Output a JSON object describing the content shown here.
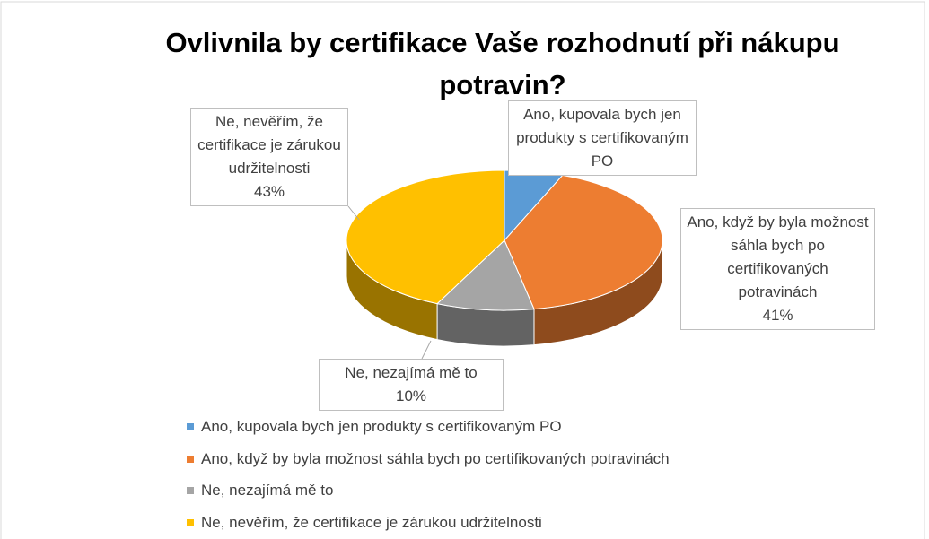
{
  "chart_data": {
    "type": "pie3d",
    "title": "Ovlivnila by certifikace Vaše rozhodnutí při nákupu potravin?",
    "categories": [
      "Ano, kupovala bych jen produkty s certifikovaným PO",
      "Ano, když by byla možnost sáhla bych po certifikovaných potravinách",
      "Ne, nezajímá mě to",
      "Ne, nevěřím, že certifikace je zárukou udržitelnosti"
    ],
    "values": [
      6,
      41,
      10,
      43
    ],
    "value_labels": [
      null,
      "41%",
      "10%",
      "43%"
    ],
    "colors": [
      "#5b9bd5",
      "#ed7d31",
      "#a5a5a5",
      "#ffc000"
    ],
    "legend": "bottom"
  }
}
